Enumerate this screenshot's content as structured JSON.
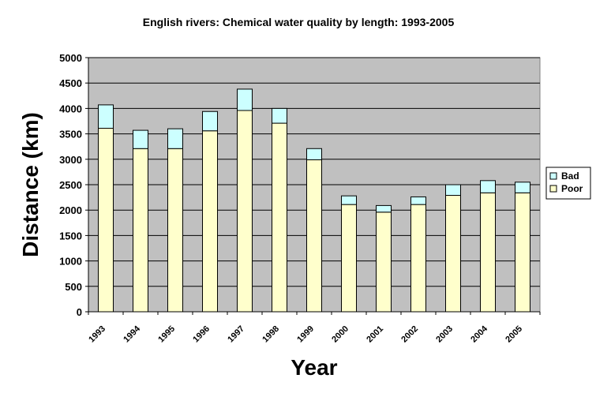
{
  "chart_data": {
    "type": "bar",
    "stacked": true,
    "title": "English rivers: Chemical water quality by length: 1993-2005",
    "xlabel": "Year",
    "ylabel": "Distance (km)",
    "ylim": [
      0,
      5000
    ],
    "ytick_step": 500,
    "grid": true,
    "legend_position": "right",
    "categories": [
      "1993",
      "1994",
      "1995",
      "1996",
      "1997",
      "1998",
      "1999",
      "2000",
      "2001",
      "2002",
      "2003",
      "2004",
      "2005"
    ],
    "series": [
      {
        "name": "Poor",
        "color": "#FFFFCC",
        "values": [
          3610,
          3210,
          3210,
          3560,
          3960,
          3710,
          2990,
          2110,
          1960,
          2110,
          2290,
          2340,
          2340
        ]
      },
      {
        "name": "Bad",
        "color": "#CCFFFF",
        "values": [
          460,
          360,
          390,
          380,
          420,
          290,
          220,
          170,
          130,
          150,
          210,
          240,
          210
        ]
      }
    ],
    "legend_order": [
      "Bad",
      "Poor"
    ]
  }
}
